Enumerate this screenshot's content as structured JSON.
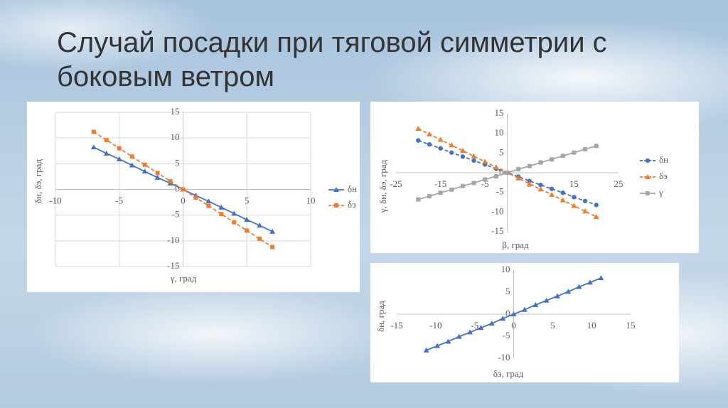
{
  "title": "Случай посадки при тяговой симметрии с боковым ветром",
  "chart_data": [
    {
      "type": "line",
      "x_label": "γ, град",
      "y_label": "δн, δэ, град",
      "x": [
        -7,
        -6,
        -5,
        -4,
        -3,
        -2,
        -1,
        0,
        1,
        2,
        3,
        4,
        5,
        6,
        7
      ],
      "series": [
        {
          "name": "δн",
          "color": "#4472c4",
          "marker": "triangle",
          "dash": false,
          "values": [
            8.2,
            7.0,
            5.9,
            4.7,
            3.5,
            2.3,
            1.2,
            0,
            -1.2,
            -2.3,
            -3.5,
            -4.7,
            -5.9,
            -7.0,
            -8.2
          ]
        },
        {
          "name": "δэ",
          "color": "#ed7d31",
          "marker": "square",
          "dash": true,
          "values": [
            11.2,
            9.6,
            8.0,
            6.4,
            4.8,
            3.2,
            1.6,
            0,
            -1.6,
            -3.2,
            -4.8,
            -6.4,
            -8.0,
            -9.6,
            -11.2
          ]
        }
      ],
      "xlim": [
        -10,
        10
      ],
      "xticks": [
        -10,
        -5,
        0,
        5,
        10
      ],
      "ylim": [
        -15,
        15
      ],
      "yticks": [
        15,
        10,
        5,
        0,
        -5,
        -10,
        -15
      ],
      "grid": "both",
      "legend": "right"
    },
    {
      "type": "line",
      "x_label": "β, град",
      "y_label": "γ, δн, δэ, град",
      "x": [
        -20,
        -17.5,
        -15,
        -12.5,
        -10,
        -7.5,
        -5,
        -2.5,
        0,
        2.5,
        5,
        7.5,
        10,
        12.5,
        15,
        17.5,
        20
      ],
      "series": [
        {
          "name": "δн",
          "color": "#4472c4",
          "marker": "circle",
          "dash": true,
          "values": [
            8.2,
            7.2,
            6.2,
            5.1,
            4.1,
            3.1,
            2.1,
            1.0,
            0,
            -1.0,
            -2.1,
            -3.1,
            -4.1,
            -5.1,
            -6.2,
            -7.2,
            -8.2
          ]
        },
        {
          "name": "δэ",
          "color": "#ed7d31",
          "marker": "triangle",
          "dash": true,
          "values": [
            11.2,
            9.8,
            8.4,
            7.0,
            5.6,
            4.2,
            2.8,
            1.4,
            0,
            -1.4,
            -2.8,
            -4.2,
            -5.6,
            -7.0,
            -8.4,
            -9.8,
            -11.2
          ]
        },
        {
          "name": "γ",
          "color": "#a5a5a5",
          "marker": "square",
          "dash": false,
          "values": [
            -6.8,
            -6.0,
            -5.1,
            -4.3,
            -3.4,
            -2.6,
            -1.7,
            -0.9,
            0,
            0.9,
            1.7,
            2.6,
            3.4,
            4.3,
            5.1,
            6.0,
            6.8
          ]
        }
      ],
      "xlim": [
        -25,
        25
      ],
      "xticks": [
        -25,
        -15,
        -5,
        5,
        15,
        25
      ],
      "ylim": [
        -15,
        15
      ],
      "yticks": [
        15,
        10,
        5,
        0,
        -5,
        -10,
        -15
      ],
      "grid": "zero",
      "legend": "right"
    },
    {
      "type": "line",
      "x_label": "δэ, град",
      "y_label": "δн, град",
      "x": [
        -11.2,
        -9.8,
        -8.4,
        -7.0,
        -5.6,
        -4.2,
        -2.8,
        -1.4,
        0,
        1.4,
        2.8,
        4.2,
        5.6,
        7.0,
        8.4,
        9.8,
        11.2
      ],
      "series": [
        {
          "color": "#4472c4",
          "marker": "triangle",
          "dash": false,
          "values": [
            -8.2,
            -7.2,
            -6.2,
            -5.1,
            -4.1,
            -3.1,
            -2.1,
            -1.0,
            0,
            1.0,
            2.1,
            3.1,
            4.1,
            5.1,
            6.2,
            7.2,
            8.2
          ]
        }
      ],
      "xlim": [
        -15,
        15
      ],
      "xticks": [
        -15,
        -10,
        -5,
        0,
        5,
        10,
        15
      ],
      "ylim": [
        -10,
        10
      ],
      "yticks": [
        10,
        5,
        0,
        -5,
        -10
      ],
      "grid": "none"
    }
  ]
}
